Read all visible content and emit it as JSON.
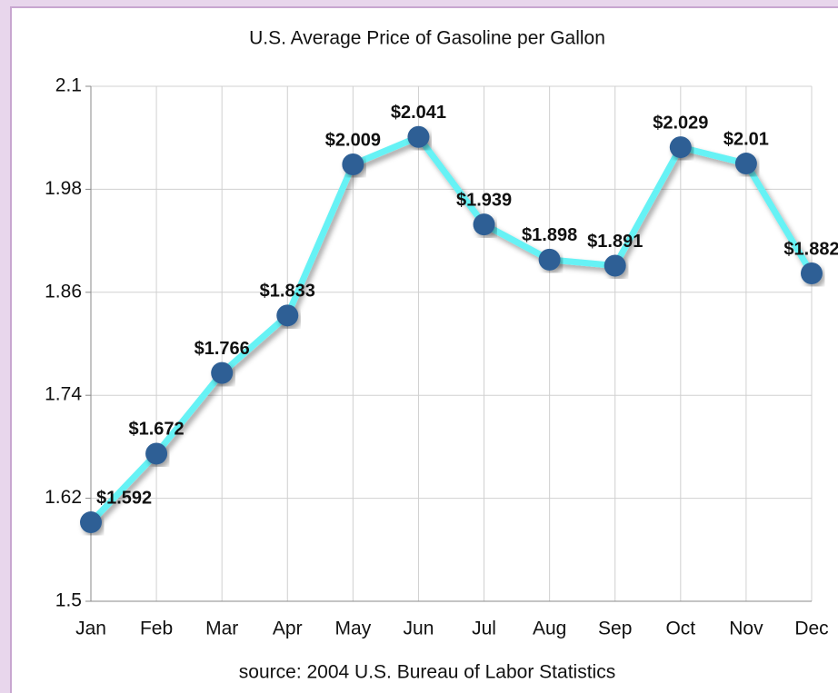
{
  "chart_data": {
    "type": "line",
    "title": "U.S. Average Price of Gasoline per Gallon",
    "subtitle": "source: 2004 U.S. Bureau of Labor Statistics",
    "categories": [
      "Jan",
      "Feb",
      "Mar",
      "Apr",
      "May",
      "Jun",
      "Jul",
      "Aug",
      "Sep",
      "Oct",
      "Nov",
      "Dec"
    ],
    "values": [
      1.592,
      1.672,
      1.766,
      1.833,
      2.009,
      2.041,
      1.939,
      1.898,
      1.891,
      2.029,
      2.01,
      1.882
    ],
    "value_labels": [
      "$1.592",
      "$1.672",
      "$1.766",
      "$1.833",
      "$2.009",
      "$2.041",
      "$1.939",
      "$1.898",
      "$1.891",
      "$2.029",
      "$2.01",
      "$1.882"
    ],
    "color": "#66f2f5",
    "marker_color": "#2f5f95",
    "ylim": [
      1.5,
      2.1
    ],
    "yticks": [
      1.5,
      1.62,
      1.74,
      1.86,
      1.98,
      2.1
    ],
    "grid": true
  }
}
